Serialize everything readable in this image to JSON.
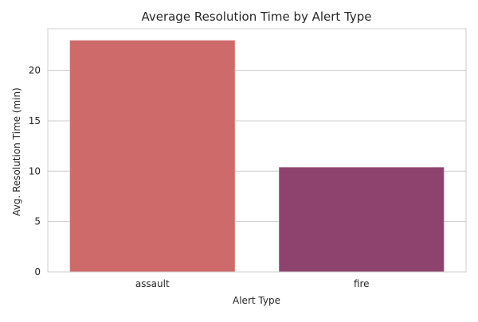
{
  "chart_data": {
    "type": "bar",
    "title": "Average Resolution Time by Alert Type",
    "xlabel": "Alert Type",
    "ylabel": "Avg. Resolution Time (min)",
    "categories": [
      "assault",
      "fire"
    ],
    "values": [
      23.0,
      10.4
    ],
    "ylim": [
      0,
      24.15
    ],
    "yticks": [
      0,
      5,
      10,
      15,
      20
    ],
    "grid": true,
    "colors": [
      "#cf6a6a",
      "#8e436e"
    ],
    "grid_color": "#cccccc",
    "spine_color": "#cccccc"
  }
}
